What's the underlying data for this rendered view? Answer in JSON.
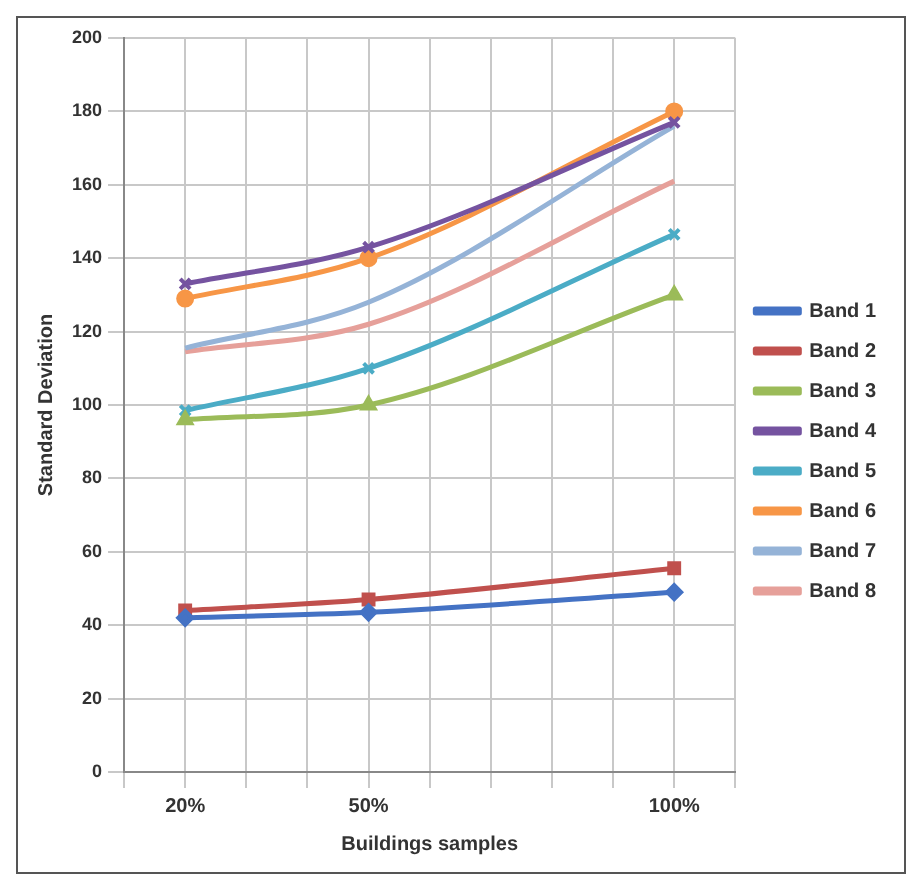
{
  "chart_data": {
    "type": "line",
    "xlabel": "Buildings samples",
    "ylabel": "Standard Deviation",
    "x": [
      20,
      50,
      100
    ],
    "xlim": [
      10,
      110
    ],
    "xticks": [
      {
        "value": 10,
        "label": null
      },
      {
        "value": 20,
        "label": "20%"
      },
      {
        "value": 30,
        "label": null
      },
      {
        "value": 40,
        "label": null
      },
      {
        "value": 50,
        "label": "50%"
      },
      {
        "value": 60,
        "label": null
      },
      {
        "value": 70,
        "label": null
      },
      {
        "value": 80,
        "label": null
      },
      {
        "value": 90,
        "label": null
      },
      {
        "value": 100,
        "label": "100%"
      },
      {
        "value": 110,
        "label": null
      }
    ],
    "ylim": [
      0,
      200
    ],
    "yticks": [
      0,
      20,
      40,
      60,
      80,
      100,
      120,
      140,
      160,
      180,
      200
    ],
    "grid": true,
    "legend": "right",
    "line_style": "solid",
    "series": [
      {
        "name": "Band 1",
        "color": "#4472c4",
        "marker": "diamond",
        "values": [
          42,
          43.5,
          49
        ]
      },
      {
        "name": "Band 2",
        "color": "#c0504d",
        "marker": "square",
        "values": [
          44,
          47,
          55.5
        ]
      },
      {
        "name": "Band 3",
        "color": "#9bbb59",
        "marker": "triangle",
        "values": [
          96,
          100,
          130
        ]
      },
      {
        "name": "Band 4",
        "color": "#7553a0",
        "marker": "cross",
        "values": [
          133,
          143,
          177
        ]
      },
      {
        "name": "Band 5",
        "color": "#4bacc6",
        "marker": "cross",
        "values": [
          98.5,
          110,
          146.5
        ]
      },
      {
        "name": "Band 6",
        "color": "#f79646",
        "marker": "circle",
        "values": [
          129,
          140,
          180
        ]
      },
      {
        "name": "Band 7",
        "color": "#95b3d7",
        "marker": "none",
        "values": [
          115.5,
          128,
          176
        ]
      },
      {
        "name": "Band 8",
        "color": "#e6a09a",
        "marker": "none",
        "values": [
          114.5,
          122,
          161
        ]
      }
    ]
  }
}
